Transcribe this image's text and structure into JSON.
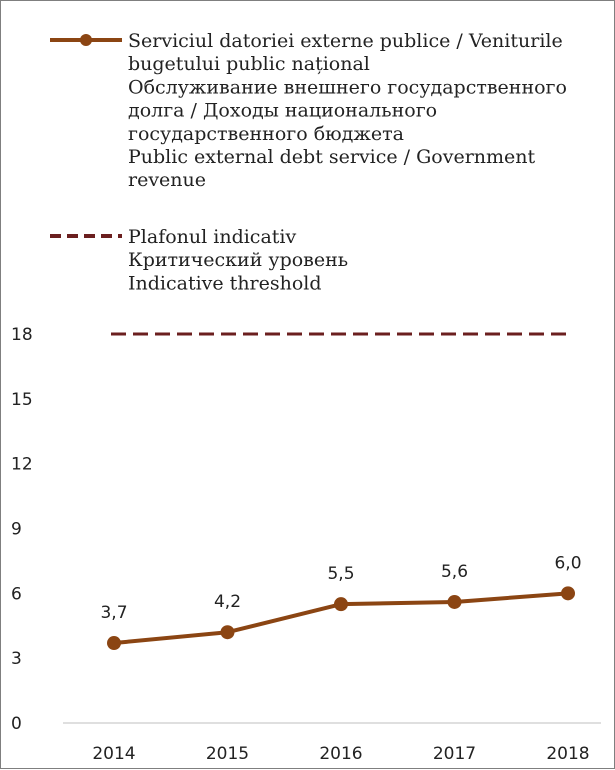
{
  "chart_data": {
    "type": "line",
    "categories": [
      "2014",
      "2015",
      "2016",
      "2017",
      "2018"
    ],
    "series": [
      {
        "name": "Serviciul datoriei externe publice / Veniturile bugetului public național Обслуживание внешнего государственного долга / Доходы национального государственного бюджета Public external debt service / Government revenue",
        "values": [
          3.7,
          4.2,
          5.5,
          5.6,
          6.0
        ],
        "data_labels": [
          "3,7",
          "4,2",
          "5,5",
          "5,6",
          "6,0"
        ],
        "color": "#8b4513",
        "style": "solid-with-markers"
      },
      {
        "name": "Plafonul indicativ Критический уровень Indicative threshold",
        "values": [
          18,
          18,
          18,
          18,
          18
        ],
        "color": "#6b1f1f",
        "style": "dashed"
      }
    ],
    "legend": {
      "position": "top",
      "entries": [
        {
          "lines": [
            "Serviciul datoriei externe publice / Veniturile",
            "bugetului public național",
            "Обслуживание внешнего государственного",
            "долга / Доходы национального",
            "государственного бюджета",
            "Public external debt service / Government",
            "revenue"
          ]
        },
        {
          "lines": [
            "Plafonul indicativ",
            "Критический уровень",
            "Indicative threshold"
          ]
        }
      ]
    },
    "ylim": [
      0,
      18
    ],
    "yticks": [
      0,
      3,
      6,
      9,
      12,
      15,
      18
    ],
    "ytick_labels": [
      "0",
      "3",
      "6",
      "9",
      "12",
      "15",
      "18"
    ],
    "grid": false,
    "title": "",
    "xlabel": "",
    "ylabel": ""
  }
}
